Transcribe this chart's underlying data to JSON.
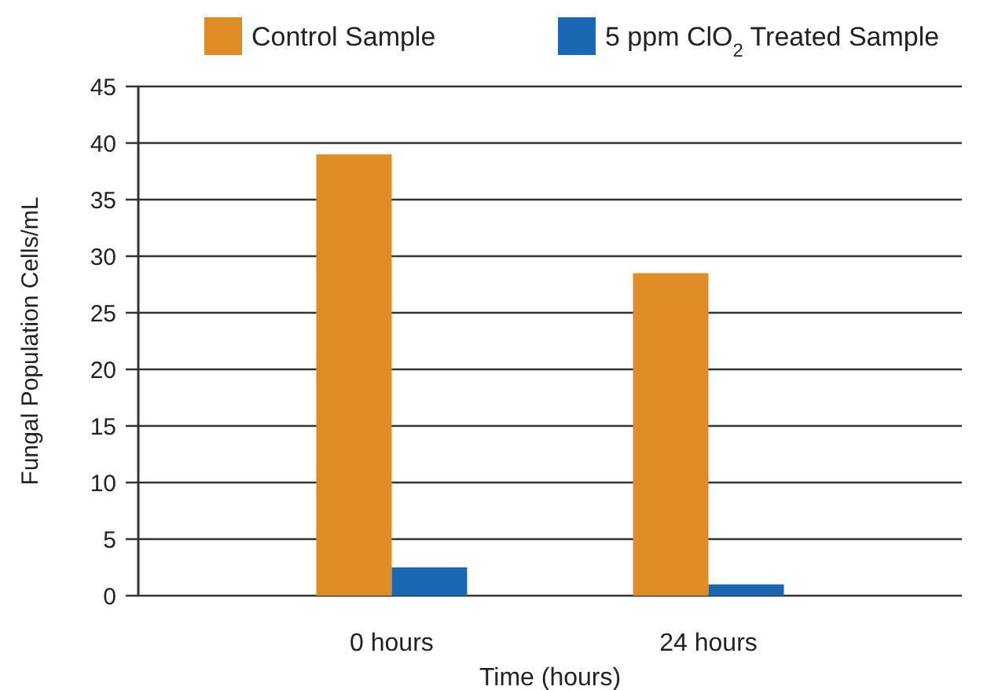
{
  "chart_data": {
    "type": "bar",
    "xlabel": "Time (hours)",
    "ylabel": "Fungal Population Cells/mL",
    "categories": [
      "0 hours",
      "24 hours"
    ],
    "series": [
      {
        "name": "Control Sample",
        "color": "#e08c26",
        "values": [
          39,
          28.5
        ]
      },
      {
        "name": "5 ppm ClO$_{2}$ Treated Sample",
        "color": "#1a68b4",
        "values": [
          2.5,
          1
        ]
      }
    ],
    "ylim": [
      0,
      45
    ],
    "yticks": [
      0,
      5,
      10,
      15,
      20,
      25,
      30,
      35,
      40,
      45
    ],
    "grid": "y",
    "legend": "top"
  }
}
